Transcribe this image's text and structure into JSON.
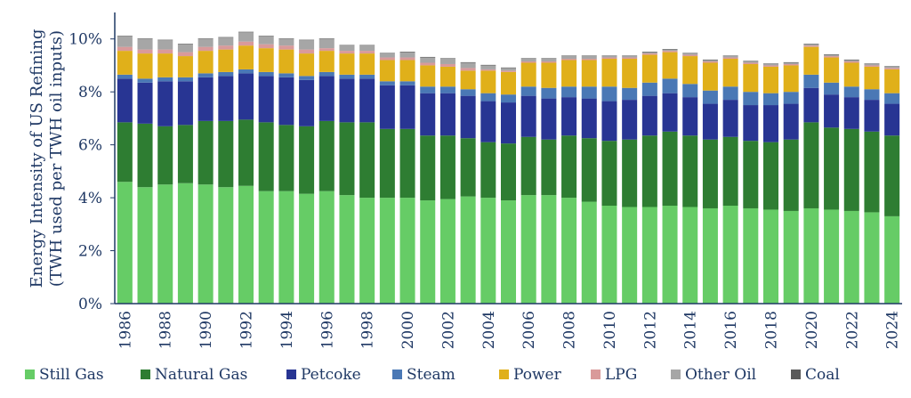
{
  "chart_data": {
    "type": "bar",
    "stacked": true,
    "ylabel_line1": "Energy Intensity of US Refining",
    "ylabel_line2": "(TWH used per TWH oil inputs)",
    "ylim": [
      0,
      11
    ],
    "y_ticks": [
      0,
      2,
      4,
      6,
      8,
      10
    ],
    "y_tick_labels": [
      "0%",
      "2%",
      "4%",
      "6%",
      "8%",
      "10%"
    ],
    "x_tick_labels": [
      "1986",
      "1988",
      "1990",
      "1992",
      "1994",
      "1996",
      "1998",
      "2000",
      "2002",
      "2004",
      "2006",
      "2008",
      "2010",
      "2012",
      "2014",
      "2016",
      "2018",
      "2020",
      "2022",
      "2024"
    ],
    "categories": [
      "1986",
      "1987",
      "1988",
      "1989",
      "1990",
      "1991",
      "1992",
      "1993",
      "1994",
      "1995",
      "1996",
      "1997",
      "1998",
      "1999",
      "2000",
      "2001",
      "2002",
      "2003",
      "2004",
      "2005",
      "2006",
      "2007",
      "2008",
      "2009",
      "2010",
      "2011",
      "2012",
      "2013",
      "2014",
      "2015",
      "2016",
      "2017",
      "2018",
      "2019",
      "2020",
      "2021",
      "2022",
      "2023",
      "2024"
    ],
    "legend_position": "bottom",
    "grid": false,
    "series": [
      {
        "name": "Still Gas",
        "color": "#66cc66",
        "values": [
          4.6,
          4.4,
          4.5,
          4.55,
          4.5,
          4.4,
          4.45,
          4.25,
          4.25,
          4.15,
          4.25,
          4.1,
          4.0,
          4.0,
          4.0,
          3.9,
          3.95,
          4.05,
          4.0,
          3.9,
          4.1,
          4.1,
          4.0,
          3.85,
          3.7,
          3.65,
          3.65,
          3.7,
          3.65,
          3.6,
          3.7,
          3.6,
          3.55,
          3.5,
          3.6,
          3.55,
          3.5,
          3.45,
          3.3
        ]
      },
      {
        "name": "Natural Gas",
        "color": "#2e7d32",
        "values": [
          2.25,
          2.4,
          2.2,
          2.2,
          2.4,
          2.5,
          2.5,
          2.6,
          2.5,
          2.55,
          2.65,
          2.75,
          2.85,
          2.6,
          2.6,
          2.45,
          2.4,
          2.2,
          2.1,
          2.15,
          2.2,
          2.1,
          2.35,
          2.4,
          2.45,
          2.55,
          2.7,
          2.8,
          2.7,
          2.6,
          2.6,
          2.55,
          2.55,
          2.7,
          3.25,
          3.1,
          3.1,
          3.05,
          3.05
        ]
      },
      {
        "name": "Petcoke",
        "color": "#283593",
        "values": [
          1.65,
          1.55,
          1.7,
          1.65,
          1.65,
          1.7,
          1.75,
          1.75,
          1.8,
          1.75,
          1.7,
          1.65,
          1.65,
          1.65,
          1.65,
          1.6,
          1.6,
          1.6,
          1.55,
          1.55,
          1.55,
          1.55,
          1.45,
          1.5,
          1.5,
          1.5,
          1.5,
          1.45,
          1.45,
          1.35,
          1.4,
          1.35,
          1.4,
          1.35,
          1.3,
          1.25,
          1.2,
          1.2,
          1.2
        ]
      },
      {
        "name": "Steam",
        "color": "#4a78b5",
        "values": [
          0.15,
          0.15,
          0.15,
          0.15,
          0.15,
          0.15,
          0.15,
          0.15,
          0.15,
          0.15,
          0.15,
          0.15,
          0.15,
          0.15,
          0.15,
          0.25,
          0.25,
          0.25,
          0.3,
          0.3,
          0.35,
          0.4,
          0.4,
          0.45,
          0.55,
          0.45,
          0.5,
          0.55,
          0.5,
          0.5,
          0.5,
          0.5,
          0.45,
          0.45,
          0.5,
          0.45,
          0.4,
          0.4,
          0.4
        ]
      },
      {
        "name": "Power",
        "color": "#e0b01a",
        "values": [
          0.9,
          0.95,
          0.9,
          0.8,
          0.85,
          0.85,
          0.9,
          0.9,
          0.9,
          0.85,
          0.8,
          0.8,
          0.8,
          0.8,
          0.8,
          0.8,
          0.75,
          0.7,
          0.85,
          0.85,
          0.9,
          0.95,
          1.0,
          1.0,
          1.05,
          1.1,
          1.05,
          1.0,
          1.05,
          1.05,
          1.05,
          1.05,
          1.0,
          1.0,
          1.05,
          0.95,
          0.9,
          0.85,
          0.9
        ]
      },
      {
        "name": "LPG",
        "color": "#d99a9a",
        "values": [
          0.15,
          0.15,
          0.15,
          0.15,
          0.15,
          0.15,
          0.15,
          0.15,
          0.15,
          0.15,
          0.1,
          0.1,
          0.1,
          0.1,
          0.1,
          0.1,
          0.1,
          0.1,
          0.05,
          0.05,
          0.05,
          0.05,
          0.05,
          0.05,
          0.05,
          0.05,
          0.05,
          0.05,
          0.05,
          0.05,
          0.05,
          0.05,
          0.05,
          0.05,
          0.05,
          0.05,
          0.05,
          0.05,
          0.05
        ]
      },
      {
        "name": "Other Oil",
        "color": "#a6a6a6",
        "values": [
          0.4,
          0.4,
          0.35,
          0.3,
          0.3,
          0.3,
          0.35,
          0.3,
          0.25,
          0.35,
          0.35,
          0.2,
          0.2,
          0.15,
          0.2,
          0.2,
          0.2,
          0.2,
          0.15,
          0.1,
          0.1,
          0.1,
          0.1,
          0.1,
          0.05,
          0.05,
          0.05,
          0.05,
          0.05,
          0.05,
          0.05,
          0.05,
          0.05,
          0.05,
          0.05,
          0.05,
          0.05,
          0.05,
          0.05
        ]
      },
      {
        "name": "Coal",
        "color": "#595959",
        "values": [
          0.02,
          0.02,
          0.02,
          0.02,
          0.02,
          0.02,
          0.02,
          0.02,
          0.02,
          0.02,
          0.02,
          0.02,
          0.02,
          0.02,
          0.02,
          0.02,
          0.02,
          0.02,
          0.02,
          0.02,
          0.02,
          0.02,
          0.02,
          0.02,
          0.02,
          0.02,
          0.02,
          0.02,
          0.02,
          0.02,
          0.02,
          0.02,
          0.02,
          0.02,
          0.02,
          0.02,
          0.02,
          0.02,
          0.02
        ]
      }
    ]
  }
}
